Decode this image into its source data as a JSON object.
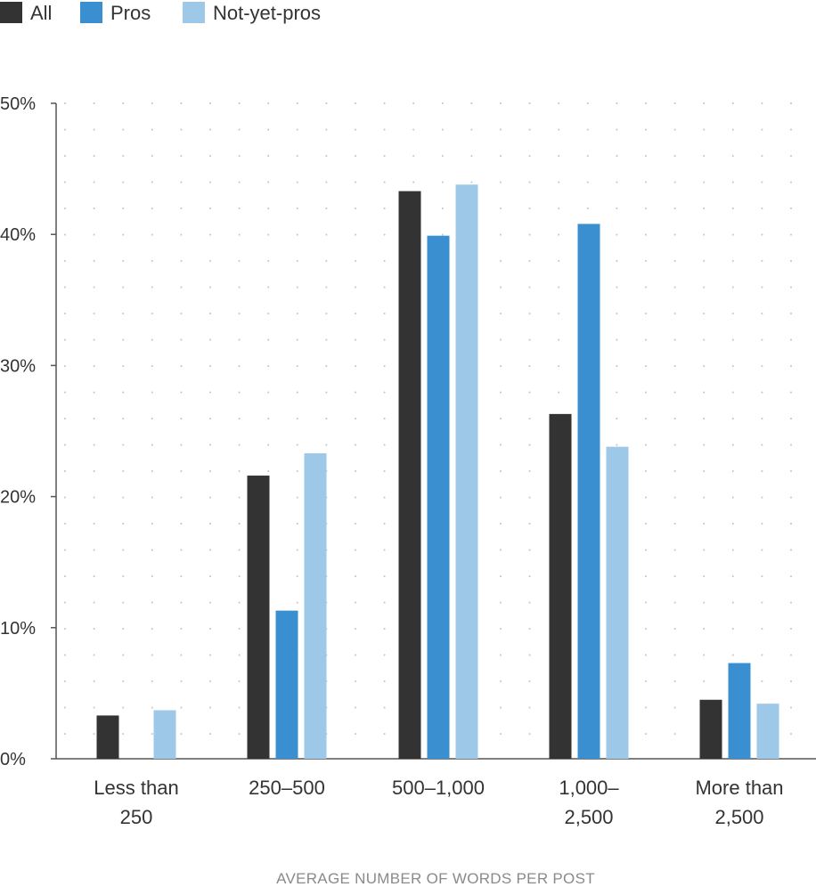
{
  "chart_data": {
    "type": "bar",
    "categories": [
      [
        "Less than",
        "250"
      ],
      [
        "250–500"
      ],
      [
        "500–1,000"
      ],
      [
        "1,000–",
        "2,500"
      ],
      [
        "More than",
        "2,500"
      ]
    ],
    "series": [
      {
        "name": "All",
        "color": "#333333",
        "values": [
          3.3,
          21.6,
          43.3,
          26.3,
          4.5
        ]
      },
      {
        "name": "Pros",
        "color": "#3a8fd1",
        "values": [
          0,
          11.3,
          39.9,
          40.8,
          7.3
        ]
      },
      {
        "name": "Not-yet-pros",
        "color": "#9dc8e8",
        "values": [
          3.7,
          23.3,
          43.8,
          23.8,
          4.2
        ]
      }
    ],
    "xlabel": "AVERAGE NUMBER OF WORDS PER POST",
    "ylabel": "",
    "ylim": [
      0,
      50
    ],
    "yticks": [
      "0%",
      "10%",
      "20%",
      "30%",
      "40%",
      "50%"
    ],
    "legend_position": "top-left",
    "grid": "dotted"
  }
}
